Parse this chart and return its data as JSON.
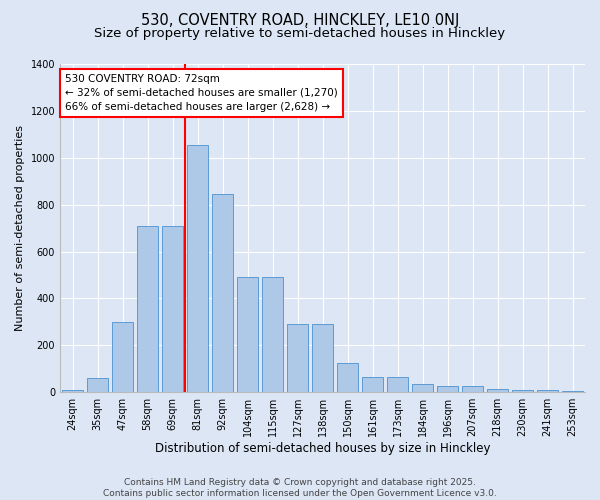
{
  "title1": "530, COVENTRY ROAD, HINCKLEY, LE10 0NJ",
  "title2": "Size of property relative to semi-detached houses in Hinckley",
  "xlabel": "Distribution of semi-detached houses by size in Hinckley",
  "ylabel": "Number of semi-detached properties",
  "categories": [
    "24sqm",
    "35sqm",
    "47sqm",
    "58sqm",
    "69sqm",
    "81sqm",
    "92sqm",
    "104sqm",
    "115sqm",
    "127sqm",
    "138sqm",
    "150sqm",
    "161sqm",
    "173sqm",
    "184sqm",
    "196sqm",
    "207sqm",
    "218sqm",
    "230sqm",
    "241sqm",
    "253sqm"
  ],
  "values": [
    10,
    60,
    300,
    710,
    710,
    1055,
    845,
    490,
    490,
    290,
    290,
    125,
    65,
    65,
    35,
    25,
    25,
    15,
    10,
    10,
    5
  ],
  "bar_color": "#aec8e8",
  "bar_edge_color": "#5b9bd5",
  "vline_x": 5.0,
  "vline_color": "red",
  "annotation_text": "530 COVENTRY ROAD: 72sqm\n← 32% of semi-detached houses are smaller (1,270)\n66% of semi-detached houses are larger (2,628) →",
  "annotation_box_color": "white",
  "annotation_box_edge": "red",
  "ylim": [
    0,
    1400
  ],
  "yticks": [
    0,
    200,
    400,
    600,
    800,
    1000,
    1200,
    1400
  ],
  "background_color": "#dce6f5",
  "grid_color": "#ffffff",
  "footer_text": "Contains HM Land Registry data © Crown copyright and database right 2025.\nContains public sector information licensed under the Open Government Licence v3.0.",
  "title1_fontsize": 10.5,
  "title2_fontsize": 9.5,
  "xlabel_fontsize": 8.5,
  "ylabel_fontsize": 8,
  "tick_fontsize": 7,
  "annotation_fontsize": 7.5,
  "footer_fontsize": 6.5
}
